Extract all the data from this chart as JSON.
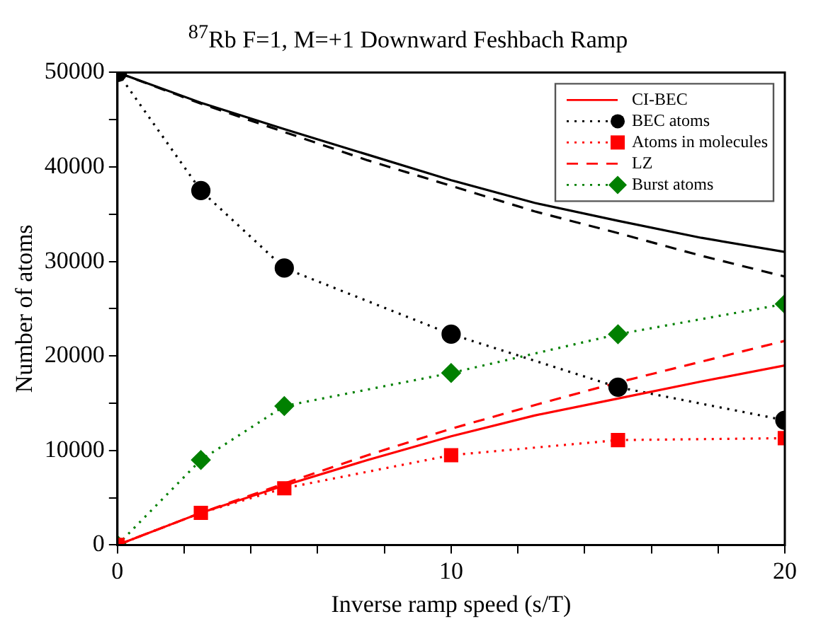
{
  "chart_data": {
    "type": "line",
    "title": "$^{87}$Rb F=1, M=+1 Downward Feshbach Ramp",
    "xlabel": "Inverse ramp speed (s/T)",
    "ylabel": "Number of atoms",
    "xlim": [
      0,
      20
    ],
    "xticks": [
      0,
      {
        "value": 2,
        "label": null
      },
      {
        "value": 4,
        "label": null
      },
      {
        "value": 6,
        "label": null
      },
      {
        "value": 8,
        "label": null
      },
      10,
      {
        "value": 12,
        "label": null
      },
      {
        "value": 14,
        "label": null
      },
      {
        "value": 16,
        "label": null
      },
      {
        "value": 18,
        "label": null
      },
      20
    ],
    "ylim": [
      0,
      50000
    ],
    "yticks": [
      0,
      {
        "value": 5000,
        "label": null
      },
      10000,
      {
        "value": 15000,
        "label": null
      },
      20000,
      {
        "value": 25000,
        "label": null
      },
      30000,
      {
        "value": 35000,
        "label": null
      },
      40000,
      {
        "value": 45000,
        "label": null
      },
      50000
    ],
    "grid": false,
    "legend": "top right",
    "series": [
      {
        "color": "#000000",
        "line_style": "solid",
        "marker": "none",
        "x": [
          0,
          2.5,
          5,
          7.5,
          10,
          12.5,
          15,
          17.5,
          20
        ],
        "values": [
          50000,
          46800,
          44000,
          41300,
          38600,
          36200,
          34300,
          32500,
          31000
        ]
      },
      {
        "color": "#000000",
        "line_style": "dashed",
        "marker": "none",
        "x": [
          0,
          2.5,
          5,
          7.5,
          10,
          12.5,
          15,
          17.5,
          20
        ],
        "values": [
          50000,
          46700,
          43700,
          40700,
          38000,
          35300,
          33000,
          30600,
          28400
        ]
      },
      {
        "name": "CI-BEC",
        "color": "#ff0000",
        "line_style": "solid",
        "marker": "none",
        "x": [
          0,
          2.5,
          5,
          7.5,
          10,
          12.5,
          15,
          17.5,
          20
        ],
        "values": [
          0,
          3400,
          6300,
          9000,
          11500,
          13700,
          15500,
          17300,
          19000
        ]
      },
      {
        "name": "BEC atoms",
        "color": "#000000",
        "line_style": "dotted",
        "marker": "circle",
        "x": [
          0,
          2.5,
          5,
          10,
          15,
          20
        ],
        "values": [
          50000,
          37500,
          29300,
          22300,
          16700,
          13200
        ]
      },
      {
        "name": "Atoms in molecules",
        "color": "#ff0000",
        "line_style": "dotted",
        "marker": "square",
        "x": [
          0,
          2.5,
          5,
          10,
          15,
          20
        ],
        "values": [
          0,
          3400,
          6000,
          9500,
          11100,
          11300
        ]
      },
      {
        "name": "LZ",
        "color": "#ff0000",
        "line_style": "dashed",
        "marker": "none",
        "x": [
          0,
          2.5,
          5,
          7.5,
          10,
          12.5,
          15,
          17.5,
          20
        ],
        "values": [
          0,
          3400,
          6500,
          9500,
          12300,
          14800,
          17200,
          19400,
          21600
        ]
      },
      {
        "name": "Burst atoms",
        "color": "#008000",
        "line_style": "dotted",
        "marker": "diamond",
        "x": [
          0,
          2.5,
          5,
          10,
          15,
          20
        ],
        "values": [
          0,
          9000,
          14700,
          18200,
          22300,
          25500
        ]
      }
    ]
  }
}
